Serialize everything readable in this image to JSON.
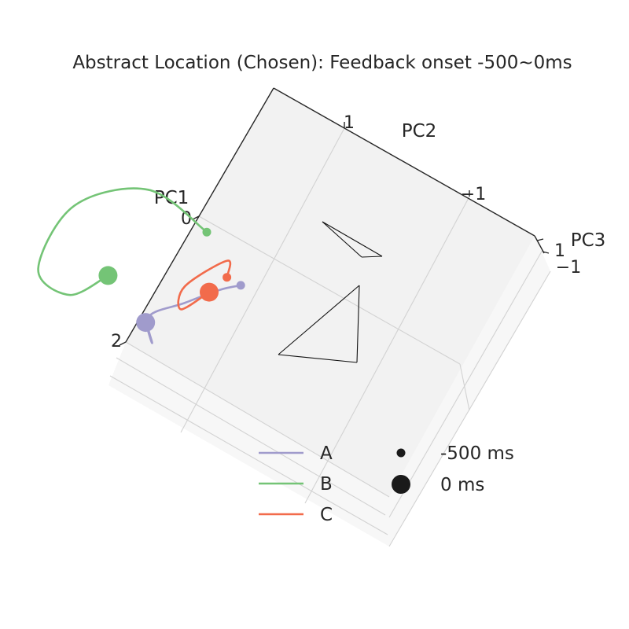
{
  "chart_data": {
    "type": "line",
    "projection": "3d",
    "title": "Abstract Location (Chosen): Feedback onset -500~0ms",
    "axes": {
      "x": {
        "label": "PC1",
        "ticks": [
          "0",
          "2"
        ]
      },
      "y": {
        "label": "PC2",
        "ticks": [
          "1",
          "−1"
        ]
      },
      "z": {
        "label": "PC3",
        "ticks": [
          "1",
          "−1"
        ]
      }
    },
    "grid": true,
    "pane_color": "#f2f2f2",
    "series": [
      {
        "name": "A",
        "color": "#a09bcc",
        "start": [
          0.5,
          -0.9,
          0.0
        ],
        "end": [
          1.6,
          -0.1,
          0.0
        ],
        "path_approx": [
          [
            0.5,
            -0.9,
            0
          ],
          [
            0.7,
            -0.7,
            0
          ],
          [
            1.1,
            -0.4,
            0
          ],
          [
            1.5,
            -0.1,
            0
          ],
          [
            1.8,
            -0.3,
            0
          ],
          [
            1.6,
            -0.1,
            0
          ]
        ]
      },
      {
        "name": "B",
        "color": "#74c476",
        "start": [
          0.1,
          -0.2,
          0.0
        ],
        "end": [
          1.3,
          0.6,
          0.0
        ],
        "path_approx": [
          [
            0.1,
            -0.2,
            0
          ],
          [
            0.0,
            0.7,
            0
          ],
          [
            0.7,
            1.4,
            0
          ],
          [
            1.7,
            1.4,
            0
          ],
          [
            1.8,
            0.9,
            0
          ],
          [
            1.3,
            0.6,
            0
          ]
        ]
      },
      {
        "name": "C",
        "color": "#f26b4b",
        "start": [
          0.5,
          -0.7,
          0.0
        ],
        "end": [
          0.8,
          -0.6,
          0.0
        ],
        "path_approx": [
          [
            0.5,
            -0.7,
            0
          ],
          [
            0.3,
            -0.6,
            0
          ],
          [
            0.9,
            -0.3,
            0
          ],
          [
            1.2,
            -0.4,
            0
          ],
          [
            0.8,
            -0.6,
            0
          ]
        ]
      }
    ],
    "connectors": "black lines join the series at their start points and at their end points",
    "legend": {
      "placement": "bottom-center",
      "series_labels": [
        "A",
        "B",
        "C"
      ],
      "time_labels": [
        "-500 ms",
        "0 ms"
      ]
    }
  }
}
